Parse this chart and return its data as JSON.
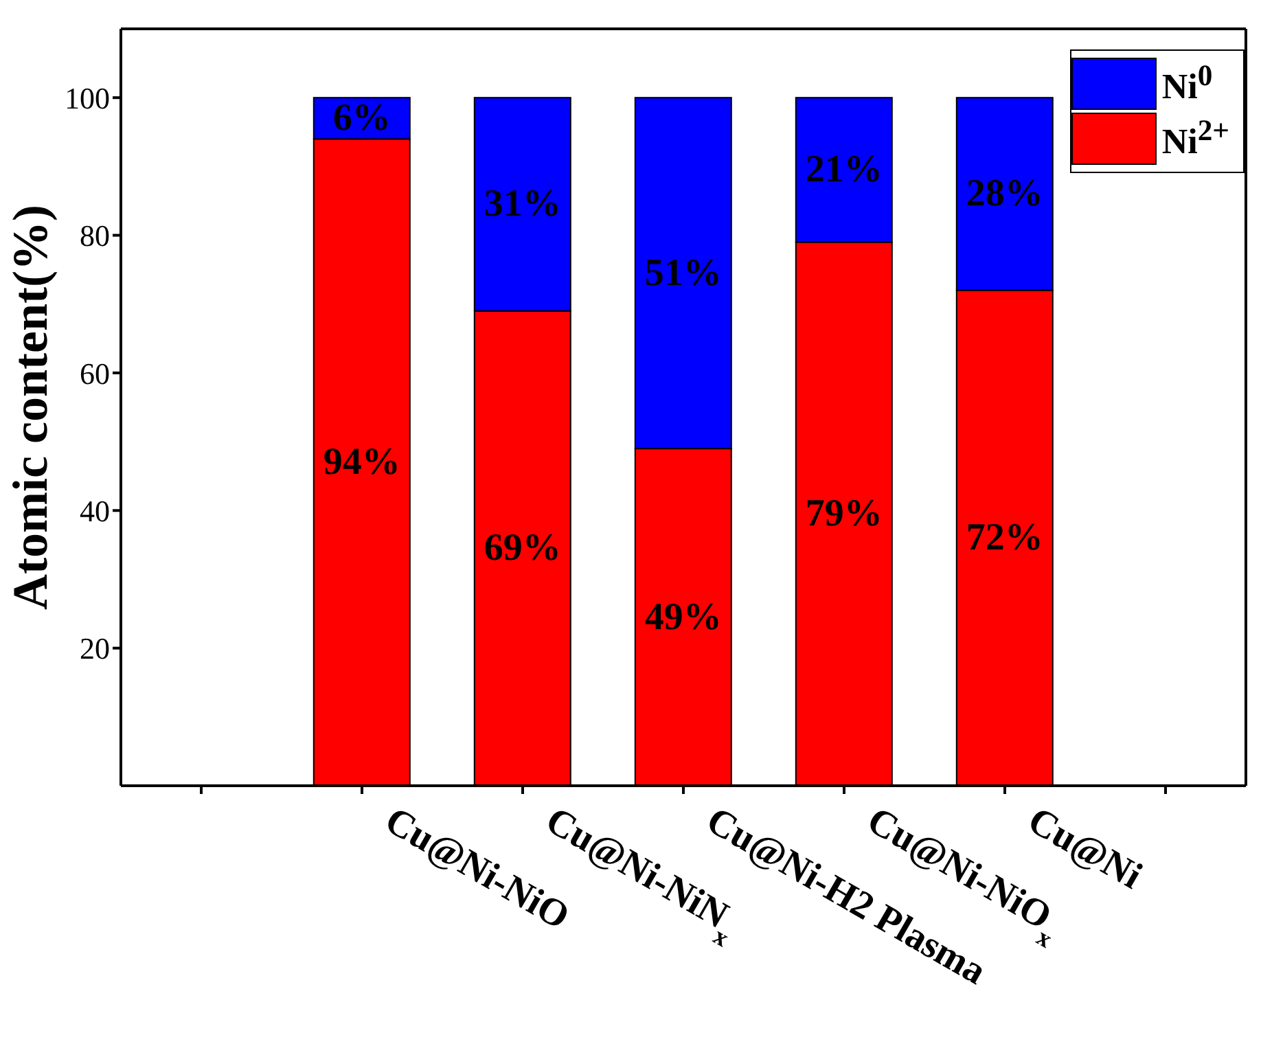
{
  "chart_data": {
    "type": "bar",
    "stacked": true,
    "ylabel": "Atomic content(%)",
    "categories": [
      null,
      "Cu@Ni-NiO",
      "Cu@Ni-NiN$_{x}$",
      "Cu@Ni-H2 Plasma",
      "Cu@Ni-NiO$_{x}$",
      "Cu@Ni",
      null
    ],
    "series": [
      {
        "name": "Ni$^{2+}$",
        "color": "#ff0000",
        "values": [
          null,
          94,
          69,
          49,
          79,
          72,
          null
        ],
        "value_labels": [
          null,
          "94%",
          "69%",
          "49%",
          "79%",
          "72%",
          null
        ]
      },
      {
        "name": "Ni$^{0}$",
        "color": "#0000ff",
        "values": [
          null,
          6,
          31,
          51,
          21,
          28,
          null
        ],
        "value_labels": [
          null,
          "6%",
          "31%",
          "51%",
          "21%",
          "28%",
          null
        ]
      }
    ],
    "ylim": [
      0,
      110
    ],
    "yticks": [
      20,
      40,
      60,
      80,
      100
    ],
    "grid": false,
    "legend": "top right"
  }
}
